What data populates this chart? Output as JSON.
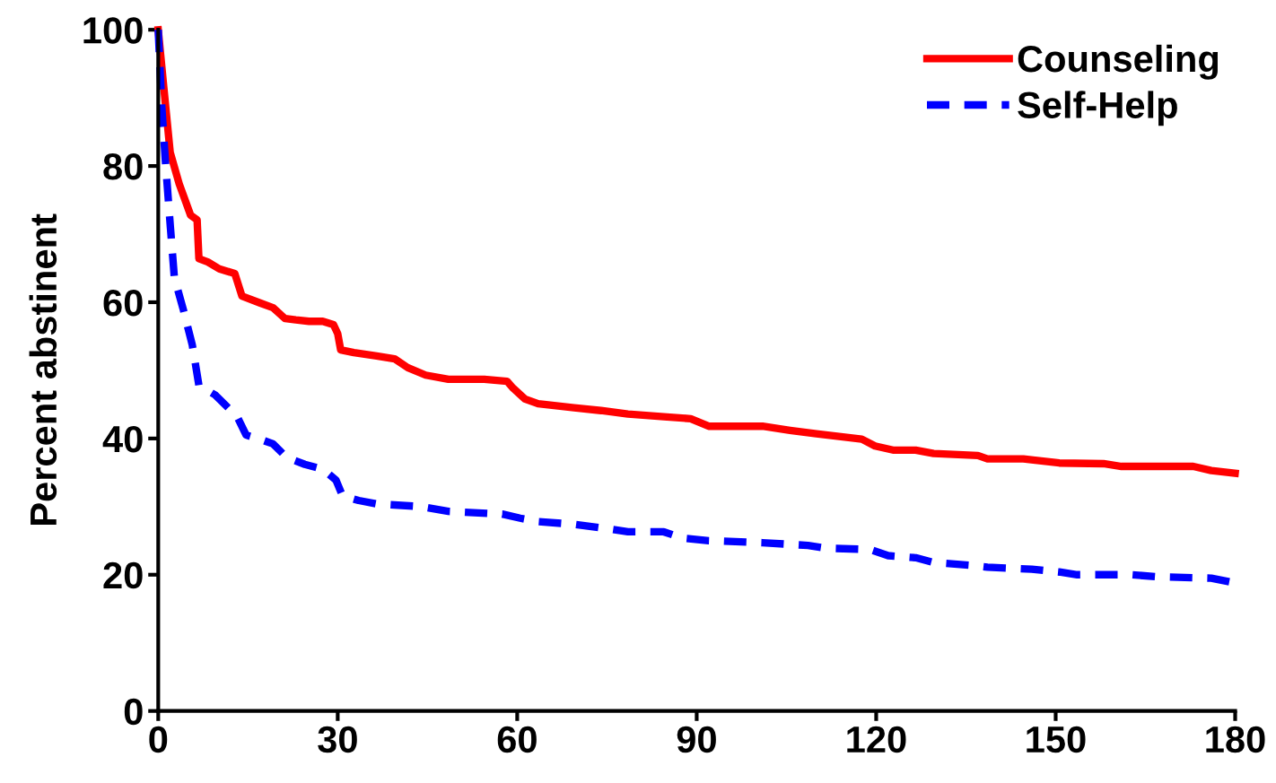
{
  "chart_data": {
    "type": "line",
    "ylabel": "Percent abstinent",
    "xlim": [
      0,
      180
    ],
    "xticks": [
      0,
      30,
      60,
      90,
      120,
      150,
      180
    ],
    "ylim": [
      0,
      100
    ],
    "yticks": [
      0,
      20,
      40,
      60,
      80,
      100
    ],
    "grid": false,
    "legend": "top right",
    "marker": "none",
    "series": [
      {
        "name": "Counseling",
        "color": "#ff0000",
        "line_style": "solid",
        "x": [
          0,
          0.9,
          2,
          3.5,
          5.4,
          6.5,
          6.8,
          8.3,
          10.2,
          12.8,
          14,
          17,
          19.2,
          21.2,
          23,
          25.2,
          27.5,
          29.3,
          30,
          30.5,
          32.7,
          36.5,
          39.5,
          41.7,
          44.7,
          48.5,
          54.5,
          58.3,
          59.3,
          61.3,
          63.5,
          69.5,
          74,
          78.5,
          84.5,
          89,
          92,
          101,
          105.6,
          110,
          117.6,
          119.8,
          122.8,
          126.6,
          129.6,
          137,
          138.6,
          144.6,
          150.6,
          158,
          161,
          168.5,
          173,
          176,
          180
        ],
        "values": [
          100,
          91.8,
          82,
          77.4,
          72.8,
          72.1,
          66.4,
          65.9,
          64.9,
          64.2,
          60.9,
          59.9,
          59.2,
          57.6,
          57.4,
          57.2,
          57.2,
          56.7,
          55.4,
          53,
          52.6,
          52.1,
          51.7,
          50.4,
          49.3,
          48.7,
          48.7,
          48.4,
          47.4,
          45.8,
          45.1,
          44.5,
          44.1,
          43.6,
          43.2,
          42.9,
          41.8,
          41.8,
          41.2,
          40.7,
          39.9,
          38.9,
          38.3,
          38.3,
          37.8,
          37.5,
          37,
          37,
          36.4,
          36.3,
          35.9,
          35.9,
          35.9,
          35.3,
          34.9
        ]
      },
      {
        "name": "Self-Help",
        "color": "#0000ff",
        "line_style": "dashed",
        "x": [
          0,
          0.6,
          1.2,
          2,
          2.7,
          4.2,
          5.7,
          6.8,
          9.5,
          11.7,
          13.2,
          14.7,
          17,
          19.2,
          21.5,
          24.5,
          27.5,
          29.7,
          30.8,
          33.5,
          36.5,
          44,
          48.5,
          57.5,
          60.5,
          63.5,
          69.5,
          75.5,
          78.5,
          84.5,
          87.5,
          92,
          101,
          108.6,
          111.6,
          119,
          122,
          126.6,
          129.6,
          135.6,
          138.6,
          146,
          150.6,
          153.6,
          162.6,
          167,
          176,
          180
        ],
        "values": [
          100,
          88.6,
          80.7,
          71.4,
          63.6,
          58.9,
          53.7,
          47.8,
          46.4,
          44.5,
          43.2,
          40.5,
          39.9,
          39.2,
          37.2,
          36.2,
          35.5,
          33.9,
          31.6,
          30.9,
          30.4,
          30,
          29.3,
          28.9,
          28.3,
          27.8,
          27.4,
          26.7,
          26.3,
          26.3,
          25.4,
          25,
          24.7,
          24.3,
          23.9,
          23.7,
          22.8,
          22.5,
          21.8,
          21.4,
          21.1,
          20.8,
          20.4,
          20,
          20,
          19.7,
          19.5,
          18.8
        ]
      }
    ]
  }
}
